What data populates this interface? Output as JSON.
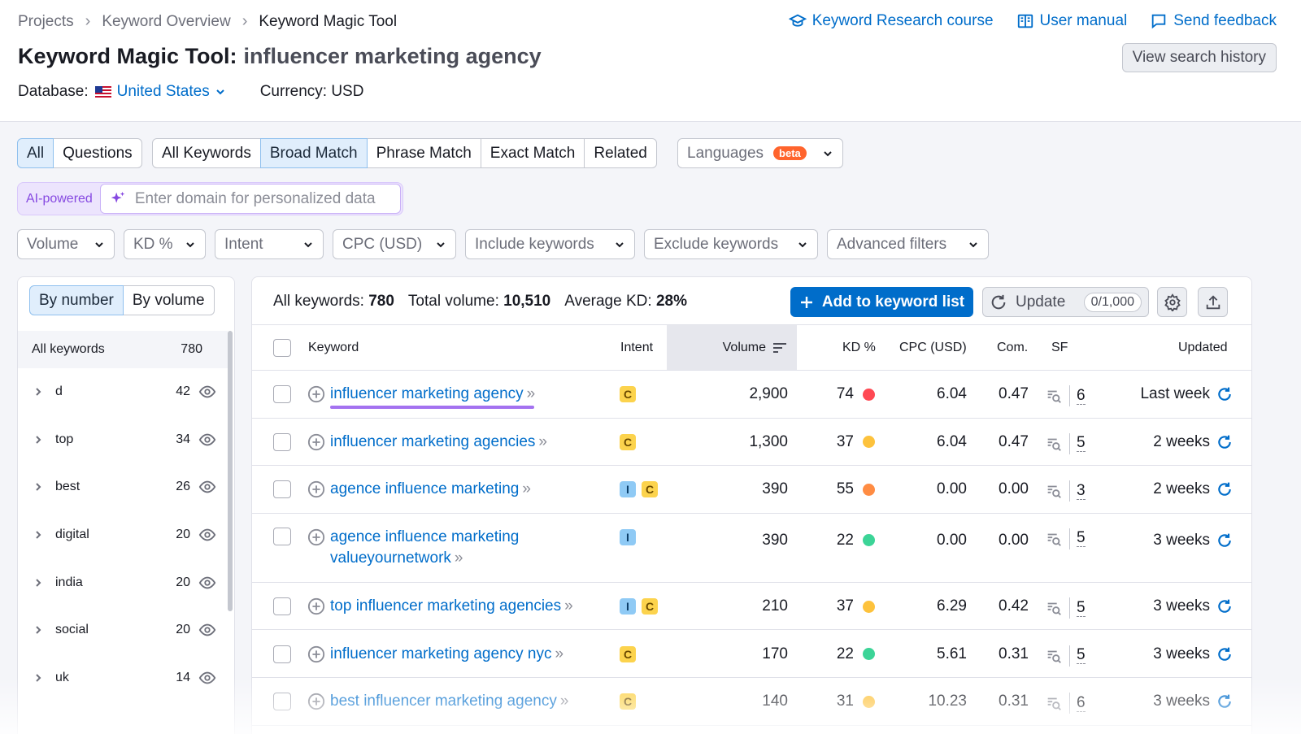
{
  "breadcrumb": [
    "Projects",
    "Keyword Overview",
    "Keyword Magic Tool"
  ],
  "top_links": {
    "course": "Keyword Research course",
    "manual": "User manual",
    "feedback": "Send feedback"
  },
  "title": {
    "tool": "Keyword Magic Tool:",
    "query": "influencer marketing agency"
  },
  "view_history": "View search history",
  "database": {
    "label": "Database:",
    "country": "United States",
    "currency": "Currency: USD"
  },
  "tabs_type": [
    "All",
    "Questions"
  ],
  "tabs_match": [
    "All Keywords",
    "Broad Match",
    "Phrase Match",
    "Exact Match",
    "Related"
  ],
  "languages": {
    "label": "Languages",
    "badge": "beta"
  },
  "ai": {
    "label": "AI-powered",
    "placeholder": "Enter domain for personalized data"
  },
  "filters": [
    "Volume",
    "KD %",
    "Intent",
    "CPC (USD)",
    "Include keywords",
    "Exclude keywords",
    "Advanced filters"
  ],
  "sidebar": {
    "toggle": [
      "By number",
      "By volume"
    ],
    "all_label": "All keywords",
    "all_count": "780",
    "groups": [
      {
        "name": "d",
        "count": "42"
      },
      {
        "name": "top",
        "count": "34"
      },
      {
        "name": "best",
        "count": "26"
      },
      {
        "name": "digital",
        "count": "20"
      },
      {
        "name": "india",
        "count": "20"
      },
      {
        "name": "social",
        "count": "20"
      },
      {
        "name": "uk",
        "count": "14"
      }
    ]
  },
  "stats": {
    "all_label": "All keywords:",
    "all_value": "780",
    "vol_label": "Total volume:",
    "vol_value": "10,510",
    "kd_label": "Average KD:",
    "kd_value": "28%"
  },
  "buttons": {
    "add": "Add to keyword list",
    "update": "Update",
    "update_count": "0/1,000"
  },
  "columns": [
    "Keyword",
    "Intent",
    "Volume",
    "KD %",
    "CPC (USD)",
    "Com.",
    "SF",
    "Updated"
  ],
  "colors": {
    "accent": "#006dca",
    "kd_red": "#ff4953",
    "kd_yellow": "#fdc23c",
    "kd_orange": "#ff8c43",
    "kd_green": "#3cd497"
  },
  "rows": [
    {
      "keyword": "influencer marketing agency",
      "keyword2": "",
      "intent": [
        "C"
      ],
      "volume": "2,900",
      "kd": "74",
      "kd_color": "#ff4953",
      "cpc": "6.04",
      "com": "0.47",
      "sf": "6",
      "updated": "Last week"
    },
    {
      "keyword": "influencer marketing agencies",
      "keyword2": "",
      "intent": [
        "C"
      ],
      "volume": "1,300",
      "kd": "37",
      "kd_color": "#fdc23c",
      "cpc": "6.04",
      "com": "0.47",
      "sf": "5",
      "updated": "2 weeks"
    },
    {
      "keyword": "agence influence marketing",
      "keyword2": "",
      "intent": [
        "I",
        "C"
      ],
      "volume": "390",
      "kd": "55",
      "kd_color": "#ff8c43",
      "cpc": "0.00",
      "com": "0.00",
      "sf": "3",
      "updated": "2 weeks"
    },
    {
      "keyword": "agence influence marketing",
      "keyword2": "valueyournetwork",
      "intent": [
        "I"
      ],
      "volume": "390",
      "kd": "22",
      "kd_color": "#3cd497",
      "cpc": "0.00",
      "com": "0.00",
      "sf": "5",
      "updated": "3 weeks"
    },
    {
      "keyword": "top influencer marketing agencies",
      "keyword2": "",
      "intent": [
        "I",
        "C"
      ],
      "volume": "210",
      "kd": "37",
      "kd_color": "#fdc23c",
      "cpc": "6.29",
      "com": "0.42",
      "sf": "5",
      "updated": "3 weeks"
    },
    {
      "keyword": "influencer marketing agency nyc",
      "keyword2": "",
      "intent": [
        "C"
      ],
      "volume": "170",
      "kd": "22",
      "kd_color": "#3cd497",
      "cpc": "5.61",
      "com": "0.31",
      "sf": "5",
      "updated": "3 weeks"
    },
    {
      "keyword": "best influencer marketing agency",
      "keyword2": "",
      "intent": [
        "C"
      ],
      "volume": "140",
      "kd": "31",
      "kd_color": "#fdc23c",
      "cpc": "10.23",
      "com": "0.31",
      "sf": "6",
      "updated": "3 weeks"
    }
  ]
}
